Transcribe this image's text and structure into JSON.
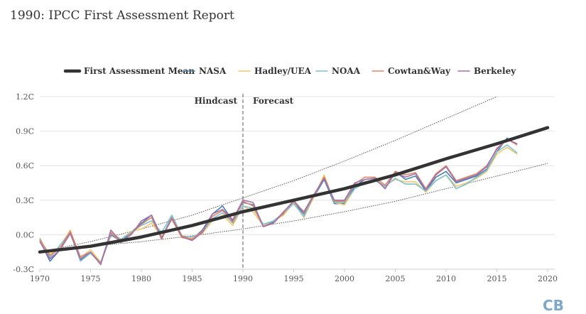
{
  "title": "1990: IPCC First Assessment Report",
  "logo": {
    "text": "CB",
    "color": "#7fa7c9"
  },
  "chart_data": {
    "type": "line",
    "title": "1990: IPCC First Assessment Report",
    "xlabel": "",
    "ylabel": "",
    "xlim": [
      1970,
      2020
    ],
    "ylim": [
      -0.3,
      1.2
    ],
    "x_ticks": [
      1970,
      1975,
      1980,
      1985,
      1990,
      1995,
      2000,
      2005,
      2010,
      2015,
      2020
    ],
    "x_tick_labels": [
      "1970",
      "1975",
      "1980",
      "1985",
      "1990",
      "1995",
      "2000",
      "2005",
      "2010",
      "2015",
      "2020"
    ],
    "y_ticks": [
      -0.3,
      0.0,
      0.3,
      0.6,
      0.9,
      1.2
    ],
    "y_tick_labels": [
      "-0.3C",
      "0.0C",
      "0.3C",
      "0.6C",
      "0.9C",
      "1.2C"
    ],
    "grid": "horizontal",
    "legend_position": "top",
    "annotations": [
      {
        "text": "Hindcast",
        "x": 1990,
        "side": "left"
      },
      {
        "text": "Forecast",
        "x": 1990,
        "side": "right"
      }
    ],
    "divider_x": 1990,
    "mean": {
      "name": "First Assessment Mean",
      "color": "#333333",
      "x": [
        1970,
        1975,
        1980,
        1985,
        1990,
        1995,
        2000,
        2005,
        2010,
        2015,
        2020
      ],
      "values": [
        -0.15,
        -0.1,
        -0.02,
        0.08,
        0.2,
        0.3,
        0.4,
        0.52,
        0.66,
        0.79,
        0.93
      ]
    },
    "upper_bound": [
      [
        1970,
        -0.15
      ],
      [
        1975,
        -0.06
      ],
      [
        1980,
        0.05
      ],
      [
        1985,
        0.17
      ],
      [
        1990,
        0.32
      ],
      [
        1995,
        0.47
      ],
      [
        2000,
        0.64
      ],
      [
        2005,
        0.82
      ],
      [
        2010,
        1.01
      ],
      [
        2015,
        1.2
      ],
      [
        2017,
        1.3
      ]
    ],
    "lower_bound": [
      [
        1970,
        -0.15
      ],
      [
        1975,
        -0.1
      ],
      [
        1980,
        -0.06
      ],
      [
        1985,
        -0.01
      ],
      [
        1990,
        0.05
      ],
      [
        1995,
        0.12
      ],
      [
        2000,
        0.2
      ],
      [
        2005,
        0.29
      ],
      [
        2010,
        0.4
      ],
      [
        2015,
        0.51
      ],
      [
        2020,
        0.62
      ]
    ],
    "observations_x": [
      1970,
      1971,
      1972,
      1973,
      1974,
      1975,
      1976,
      1977,
      1978,
      1979,
      1980,
      1981,
      1982,
      1983,
      1984,
      1985,
      1986,
      1987,
      1988,
      1989,
      1990,
      1991,
      1992,
      1993,
      1994,
      1995,
      1996,
      1997,
      1998,
      1999,
      2000,
      2001,
      2002,
      2003,
      2004,
      2005,
      2006,
      2007,
      2008,
      2009,
      2010,
      2011,
      2012,
      2013,
      2014,
      2015,
      2016,
      2017
    ],
    "series": [
      {
        "name": "NASA",
        "color": "#4a7fb0",
        "values": [
          -0.05,
          -0.23,
          -0.13,
          0.02,
          -0.22,
          -0.16,
          -0.25,
          0.0,
          -0.06,
          0.02,
          0.1,
          0.17,
          -0.02,
          0.15,
          -0.02,
          -0.04,
          0.04,
          0.18,
          0.25,
          0.12,
          0.28,
          0.26,
          0.08,
          0.11,
          0.18,
          0.28,
          0.18,
          0.33,
          0.48,
          0.27,
          0.27,
          0.42,
          0.48,
          0.49,
          0.4,
          0.55,
          0.48,
          0.51,
          0.38,
          0.5,
          0.55,
          0.45,
          0.48,
          0.51,
          0.57,
          0.72,
          0.84,
          0.78
        ]
      },
      {
        "name": "Hadley/UEA",
        "color": "#f2c86b",
        "values": [
          -0.05,
          -0.17,
          -0.1,
          0.04,
          -0.2,
          -0.13,
          -0.24,
          0.02,
          -0.04,
          0.03,
          0.05,
          0.1,
          -0.01,
          0.13,
          -0.03,
          -0.03,
          0.01,
          0.12,
          0.17,
          0.08,
          0.25,
          0.2,
          0.08,
          0.12,
          0.17,
          0.28,
          0.15,
          0.33,
          0.52,
          0.28,
          0.26,
          0.4,
          0.46,
          0.47,
          0.43,
          0.48,
          0.46,
          0.46,
          0.37,
          0.47,
          0.52,
          0.42,
          0.45,
          0.49,
          0.55,
          0.7,
          0.76,
          0.7
        ]
      },
      {
        "name": "NOAA",
        "color": "#7fbfcf",
        "values": [
          -0.03,
          -0.2,
          -0.09,
          0.02,
          -0.23,
          -0.16,
          -0.24,
          0.01,
          -0.04,
          0.02,
          0.08,
          0.12,
          0.02,
          0.17,
          -0.01,
          -0.02,
          0.02,
          0.14,
          0.19,
          0.1,
          0.25,
          0.23,
          0.09,
          0.12,
          0.19,
          0.27,
          0.16,
          0.34,
          0.5,
          0.28,
          0.28,
          0.4,
          0.45,
          0.47,
          0.42,
          0.49,
          0.44,
          0.44,
          0.38,
          0.47,
          0.52,
          0.4,
          0.44,
          0.5,
          0.56,
          0.72,
          0.78,
          0.71
        ]
      },
      {
        "name": "Cowtan&Way",
        "color": "#d88a70",
        "values": [
          -0.04,
          -0.18,
          -0.12,
          0.03,
          -0.19,
          -0.15,
          -0.25,
          0.02,
          -0.07,
          0.01,
          0.09,
          0.15,
          -0.04,
          0.15,
          -0.01,
          -0.04,
          0.03,
          0.16,
          0.21,
          0.11,
          0.29,
          0.25,
          0.07,
          0.1,
          0.19,
          0.3,
          0.19,
          0.34,
          0.5,
          0.29,
          0.29,
          0.44,
          0.5,
          0.5,
          0.43,
          0.55,
          0.52,
          0.54,
          0.4,
          0.53,
          0.6,
          0.47,
          0.5,
          0.53,
          0.6,
          0.74,
          0.83,
          0.78
        ]
      },
      {
        "name": "Berkeley",
        "color": "#a470a8",
        "values": [
          -0.06,
          -0.21,
          -0.13,
          0.01,
          -0.21,
          -0.15,
          -0.26,
          0.04,
          -0.06,
          0.0,
          0.12,
          0.17,
          -0.03,
          0.14,
          -0.02,
          -0.05,
          0.02,
          0.18,
          0.22,
          0.13,
          0.3,
          0.28,
          0.07,
          0.1,
          0.2,
          0.29,
          0.2,
          0.35,
          0.49,
          0.3,
          0.3,
          0.45,
          0.48,
          0.49,
          0.4,
          0.54,
          0.5,
          0.53,
          0.39,
          0.52,
          0.59,
          0.46,
          0.49,
          0.52,
          0.59,
          0.75,
          0.83,
          0.79
        ]
      }
    ]
  }
}
